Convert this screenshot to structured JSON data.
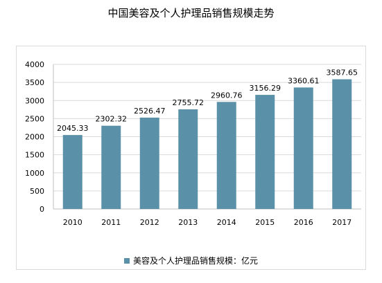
{
  "chart_data": {
    "type": "bar",
    "title": "中国美容及个人护理品销售规模走势",
    "categories": [
      "2010",
      "2011",
      "2012",
      "2013",
      "2014",
      "2015",
      "2016",
      "2017"
    ],
    "series": [
      {
        "name": "美容及个人护理品销售规模：亿元",
        "values": [
          2045.33,
          2302.32,
          2526.47,
          2755.72,
          2960.76,
          3156.29,
          3360.61,
          3587.65
        ]
      }
    ],
    "value_labels": [
      "2045.33",
      "2302.32",
      "2526.47",
      "2755.72",
      "2960.76",
      "3156.29",
      "3360.61",
      "3587.65"
    ],
    "ylim": [
      0,
      4000
    ],
    "yticks": [
      0,
      500,
      1000,
      1500,
      2000,
      2500,
      3000,
      3500,
      4000
    ],
    "grid": true,
    "legend_position": "bottom",
    "bar_color": "#5b91a8",
    "grid_color": "#d9d9d9"
  }
}
